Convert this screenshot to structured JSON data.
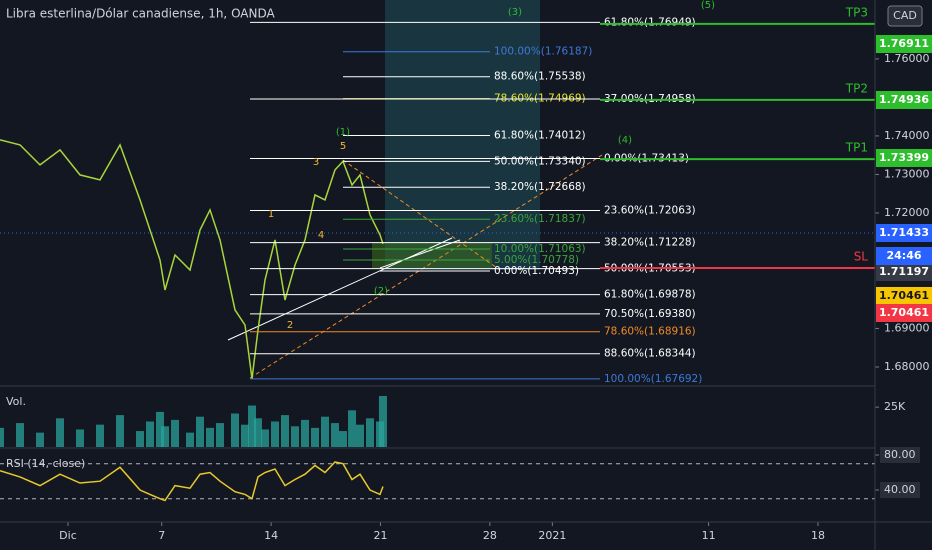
{
  "header": {
    "title": "Libra esterlina/Dólar canadiense, 1h, OANDA",
    "currency": "CAD",
    "countdown": "24:46"
  },
  "chart_data": [
    {
      "type": "line",
      "x": [
        -3.35,
        -2.07,
        -0.79,
        0.49,
        1.77,
        3.05,
        4.33,
        5.61,
        6.25,
        6.89,
        7.21,
        7.85,
        8.81,
        9.45,
        10.09,
        10.73,
        11.69,
        12.33,
        12.78,
        13.16,
        13.61,
        14.25,
        14.89,
        15.53,
        16.17,
        16.81,
        17.45,
        18.09,
        18.6,
        19.18,
        19.69,
        20.33,
        20.97,
        21.16
      ],
      "values": [
        1.73896,
        1.73766,
        1.73247,
        1.73636,
        1.72987,
        1.72857,
        1.73766,
        1.72338,
        1.71558,
        1.70779,
        1.7,
        1.70909,
        1.70519,
        1.71558,
        1.72078,
        1.71299,
        1.69481,
        1.69091,
        1.67692,
        1.68961,
        1.7026,
        1.71299,
        1.6974,
        1.70649,
        1.71299,
        1.72468,
        1.72338,
        1.73117,
        1.7334,
        1.72727,
        1.72987,
        1.71948,
        1.71429,
        1.71197
      ],
      "color": "#a8d63a",
      "xlim": [
        -3.35,
        52.65
      ],
      "ylim": [
        1.67532,
        1.7753
      ],
      "yticks": [
        {
          "value": 1.76,
          "label": "1.76000"
        },
        {
          "value": 1.74,
          "label": "1.74000"
        },
        {
          "value": 1.73,
          "label": "1.73000"
        },
        {
          "value": 1.72,
          "label": "1.72000"
        },
        {
          "value": 1.69,
          "label": "1.69000"
        },
        {
          "value": 1.68,
          "label": "1.68000"
        }
      ],
      "levels": [
        {
          "label": "100.00%(1.76187)",
          "value": 1.76187,
          "color": "#3d79d6"
        },
        {
          "label": "88.60%(1.75538)",
          "value": 1.75538,
          "color": "#ffffff"
        },
        {
          "label": "78.60%(1.74969)",
          "value": 1.74969,
          "color": "#e5e82a"
        },
        {
          "label": "61.80%(1.74012)",
          "value": 1.74012,
          "color": "#ffffff"
        },
        {
          "label": "50.00%(1.73340)",
          "value": 1.7334,
          "color": "#ffffff"
        },
        {
          "label": "38.20%(1.72668)",
          "value": 1.72668,
          "color": "#ffffff"
        },
        {
          "label": "23.60%(1.71837)",
          "value": 1.71837,
          "color": "#3aa53a"
        },
        {
          "label": "10.00%(1.71063)",
          "value": 1.71063,
          "color": "#3aa53a"
        },
        {
          "label": "5.00%(1.70778)",
          "value": 1.70778,
          "color": "#3aa53a"
        },
        {
          "label": "0.00%(1.70493)",
          "value": 1.70493,
          "color": "#ffffff"
        },
        {
          "label": "61.80%(1.76949)",
          "value": 1.76949,
          "color": "#ffffff"
        },
        {
          "label": "37.00%(1.74958)",
          "value": 1.74958,
          "color": "#ffffff"
        },
        {
          "label": "0.00%(1.73413)",
          "value": 1.73413,
          "color": "#ffffff"
        },
        {
          "label": "23.60%(1.72063)",
          "value": 1.72063,
          "color": "#ffffff"
        },
        {
          "label": "38.20%(1.71228)",
          "value": 1.71228,
          "color": "#ffffff"
        },
        {
          "label": "50.00%(1.70553)",
          "value": 1.70553,
          "color": "#ffffff"
        },
        {
          "label": "61.80%(1.69878)",
          "value": 1.69878,
          "color": "#ffffff"
        },
        {
          "label": "70.50%(1.69380)",
          "value": 1.6938,
          "color": "#ffffff"
        },
        {
          "label": "78.60%(1.68916)",
          "value": 1.68916,
          "color": "#f08a24"
        },
        {
          "label": "88.60%(1.68344)",
          "value": 1.68344,
          "color": "#ffffff"
        },
        {
          "label": "100.00%(1.67692)",
          "value": 1.67692,
          "color": "#3d79d6"
        }
      ],
      "targets": [
        {
          "label": "TP3",
          "value": 1.76911,
          "color": "#2dbd2d"
        },
        {
          "label": "TP2",
          "value": 1.74936,
          "color": "#2dbd2d"
        },
        {
          "label": "TP1",
          "value": 1.73399,
          "color": "#2dbd2d"
        },
        {
          "label": "SL",
          "value": 1.70571,
          "color": "#f23645"
        }
      ],
      "annotations": [
        {
          "text": "(3)",
          "color": "#2dbd2d"
        },
        {
          "text": "(5)",
          "color": "#2dbd2d"
        },
        {
          "text": "(1)",
          "color": "#2dbd2d"
        },
        {
          "text": "(4)",
          "color": "#2dbd2d"
        },
        {
          "text": "(2)",
          "color": "#2dbd2d"
        },
        {
          "text": "5",
          "color": "#f5b731"
        },
        {
          "text": "3",
          "color": "#f5b731"
        },
        {
          "text": "1",
          "color": "#f5b731"
        },
        {
          "text": "4",
          "color": "#f5b731"
        },
        {
          "text": "2",
          "color": "#f5b731"
        }
      ],
      "price_labels": [
        {
          "value": 1.76911,
          "color": "#2dbd2d"
        },
        {
          "value": 1.74936,
          "color": "#2dbd2d"
        },
        {
          "value": 1.73399,
          "color": "#2dbd2d"
        },
        {
          "value": 1.71433,
          "color": "#2962ff"
        },
        {
          "value": 1.71197,
          "color": "#363a45"
        },
        {
          "value": 1.70461,
          "color": "#f7c600"
        },
        {
          "value": 1.70461,
          "color": "#f23645"
        }
      ]
    },
    {
      "type": "bar",
      "label": "Vol.",
      "x": [
        -3.35,
        -2.07,
        -0.79,
        0.49,
        1.77,
        3.05,
        4.33,
        5.61,
        6.25,
        6.89,
        7.21,
        7.85,
        8.81,
        9.45,
        10.09,
        10.73,
        11.69,
        12.33,
        12.78,
        13.16,
        13.61,
        14.25,
        14.89,
        15.53,
        16.17,
        16.81,
        17.45,
        18.09,
        18.6,
        19.18,
        19.69,
        20.33,
        20.97,
        21.16
      ],
      "values": [
        12000,
        15000,
        9000,
        18000,
        11000,
        14000,
        20000,
        10000,
        16000,
        22000,
        13000,
        17000,
        9000,
        19000,
        12000,
        15000,
        21000,
        14000,
        26000,
        18000,
        11000,
        16000,
        20000,
        13000,
        17000,
        12000,
        19000,
        15000,
        10000,
        23000,
        14000,
        18000,
        16000,
        32000
      ],
      "color": "#2aa39a",
      "xlim": [
        -3.35,
        52.65
      ],
      "ylim": [
        0,
        37000
      ],
      "yticks": [
        {
          "value": 25000,
          "label": "25K"
        }
      ]
    },
    {
      "type": "line",
      "label": "RSI (14, close)",
      "x": [
        -3.35,
        -2.07,
        -0.79,
        0.49,
        1.77,
        3.05,
        4.33,
        5.61,
        6.25,
        6.89,
        7.21,
        7.85,
        8.81,
        9.45,
        10.09,
        10.73,
        11.69,
        12.33,
        12.78,
        13.16,
        13.61,
        14.25,
        14.89,
        15.53,
        16.17,
        16.81,
        17.45,
        18.09,
        18.6,
        19.18,
        19.69,
        20.33,
        20.97,
        21.16
      ],
      "values": [
        62,
        55,
        45,
        58,
        48,
        50,
        66,
        40,
        35,
        30,
        28,
        45,
        42,
        58,
        60,
        50,
        38,
        35,
        30,
        55,
        60,
        64,
        45,
        52,
        58,
        68,
        60,
        72,
        70,
        52,
        58,
        40,
        35,
        44
      ],
      "color": "#e8c92a",
      "bands": [
        70,
        30
      ],
      "xlim": [
        -3.35,
        52.65
      ],
      "ylim": [
        5.7,
        85.7
      ],
      "yticks": [
        {
          "value": 80,
          "label": "80.00"
        },
        {
          "value": 40,
          "label": "40.00"
        }
      ],
      "xticks": [
        {
          "value": 1,
          "label": "Dic"
        },
        7,
        14,
        21,
        28,
        {
          "value": 32,
          "label": "2021"
        },
        {
          "value": 42,
          "label": "11"
        },
        {
          "value": 49,
          "label": "18"
        }
      ]
    }
  ]
}
